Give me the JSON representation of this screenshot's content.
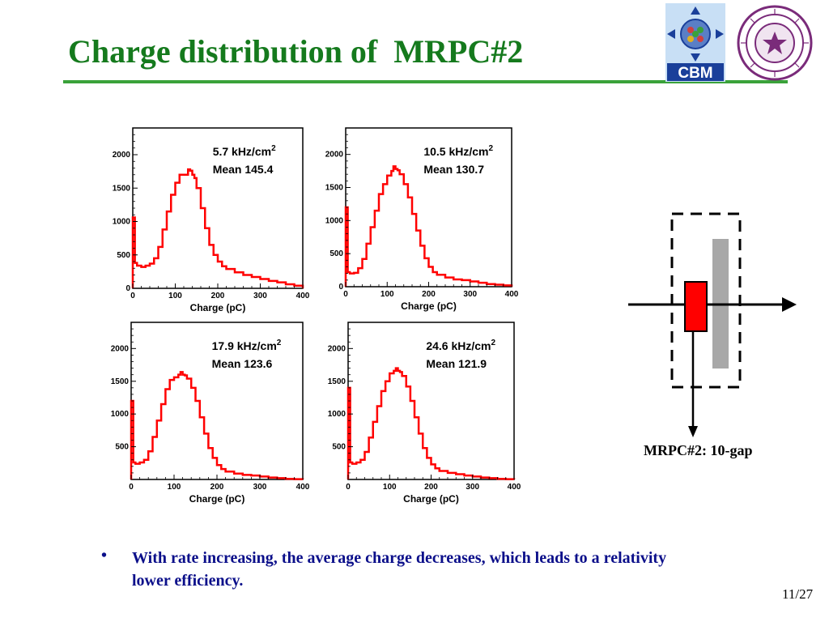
{
  "slide": {
    "title": "Charge distribution of  MRPC#2",
    "bullet_symbol": "•",
    "bullet_text": "With rate increasing, the average charge decreases, which leads to a relativity lower efficiency.",
    "page_number": "11/27",
    "diagram_label": "MRPC#2: 10-gap",
    "logo_cbm_text": "CBM",
    "colors": {
      "title": "#157a1d",
      "rule": "#3aa23a",
      "bullet": "#0b0f8a",
      "histogram": "#ff0000",
      "mrpc_block": "#ff0000",
      "mrpc_bar": "#a8a8a8"
    }
  },
  "chart_data": [
    {
      "type": "histogram",
      "xlabel": "Charge (pC)",
      "ylabel": "",
      "xlim": [
        0,
        400
      ],
      "ylim": [
        0,
        2400
      ],
      "xticks": [
        0,
        100,
        200,
        300,
        400
      ],
      "yticks": [
        0,
        500,
        1000,
        1500,
        2000
      ],
      "stats": {
        "rate": "5.7 kHz/cm",
        "rate_sup": "2",
        "mean": "Mean  145.4"
      },
      "x": [
        0,
        5,
        10,
        20,
        30,
        40,
        50,
        60,
        70,
        80,
        90,
        100,
        110,
        120,
        130,
        135,
        140,
        145,
        150,
        160,
        170,
        180,
        190,
        200,
        210,
        220,
        240,
        260,
        280,
        300,
        320,
        340,
        360,
        380,
        400
      ],
      "values": [
        1060,
        380,
        340,
        320,
        340,
        370,
        450,
        620,
        880,
        1150,
        1400,
        1580,
        1700,
        1700,
        1780,
        1760,
        1700,
        1650,
        1500,
        1200,
        900,
        650,
        500,
        400,
        330,
        290,
        240,
        200,
        170,
        140,
        110,
        90,
        60,
        40,
        0
      ]
    },
    {
      "type": "histogram",
      "xlabel": "Charge (pC)",
      "ylabel": "",
      "xlim": [
        0,
        400
      ],
      "ylim": [
        0,
        2400
      ],
      "xticks": [
        0,
        100,
        200,
        300,
        400
      ],
      "yticks": [
        0,
        500,
        1000,
        1500,
        2000
      ],
      "stats": {
        "rate": "10.5 kHz/cm",
        "rate_sup": "2",
        "mean": "Mean   130.7"
      },
      "x": [
        0,
        5,
        10,
        20,
        30,
        40,
        50,
        60,
        70,
        80,
        90,
        100,
        110,
        115,
        120,
        125,
        130,
        140,
        150,
        160,
        170,
        180,
        190,
        200,
        210,
        220,
        240,
        260,
        280,
        300,
        320,
        340,
        360,
        380,
        400
      ],
      "values": [
        1200,
        220,
        200,
        210,
        280,
        420,
        650,
        900,
        1150,
        1400,
        1550,
        1680,
        1750,
        1820,
        1780,
        1760,
        1700,
        1550,
        1350,
        1100,
        850,
        620,
        430,
        300,
        220,
        180,
        140,
        110,
        100,
        80,
        60,
        40,
        30,
        20,
        0
      ]
    },
    {
      "type": "histogram",
      "xlabel": "Charge (pC)",
      "ylabel": "",
      "xlim": [
        0,
        400
      ],
      "ylim": [
        0,
        2400
      ],
      "xticks": [
        0,
        100,
        200,
        300,
        400
      ],
      "yticks": [
        500,
        1000,
        1500,
        2000
      ],
      "stats": {
        "rate": "17.9 kHz/cm",
        "rate_sup": "2",
        "mean": "Mean   123.6"
      },
      "x": [
        0,
        5,
        10,
        20,
        30,
        40,
        50,
        60,
        70,
        80,
        90,
        100,
        110,
        115,
        120,
        125,
        130,
        140,
        150,
        160,
        170,
        180,
        190,
        200,
        210,
        220,
        240,
        260,
        280,
        300,
        320,
        340,
        360,
        380,
        400
      ],
      "values": [
        1200,
        260,
        240,
        260,
        300,
        430,
        650,
        900,
        1150,
        1380,
        1520,
        1560,
        1600,
        1640,
        1600,
        1590,
        1540,
        1400,
        1200,
        950,
        700,
        480,
        330,
        220,
        160,
        120,
        90,
        70,
        60,
        45,
        30,
        20,
        10,
        5,
        0
      ]
    },
    {
      "type": "histogram",
      "xlabel": "Charge (pC)",
      "ylabel": "",
      "xlim": [
        0,
        400
      ],
      "ylim": [
        0,
        2400
      ],
      "xticks": [
        0,
        100,
        200,
        300,
        400
      ],
      "yticks": [
        500,
        1000,
        1500,
        2000
      ],
      "stats": {
        "rate": "24.6 kHz/cm",
        "rate_sup": "2",
        "mean": "Mean   121.9"
      },
      "x": [
        0,
        5,
        10,
        20,
        30,
        40,
        50,
        60,
        70,
        80,
        90,
        100,
        110,
        115,
        120,
        125,
        130,
        140,
        150,
        160,
        170,
        180,
        190,
        200,
        210,
        220,
        240,
        260,
        280,
        300,
        320,
        340,
        360,
        380,
        400
      ],
      "values": [
        1400,
        260,
        240,
        260,
        300,
        420,
        640,
        880,
        1120,
        1350,
        1500,
        1620,
        1660,
        1700,
        1660,
        1640,
        1580,
        1420,
        1200,
        950,
        700,
        480,
        330,
        230,
        170,
        130,
        100,
        80,
        60,
        45,
        30,
        20,
        10,
        5,
        0
      ]
    }
  ]
}
